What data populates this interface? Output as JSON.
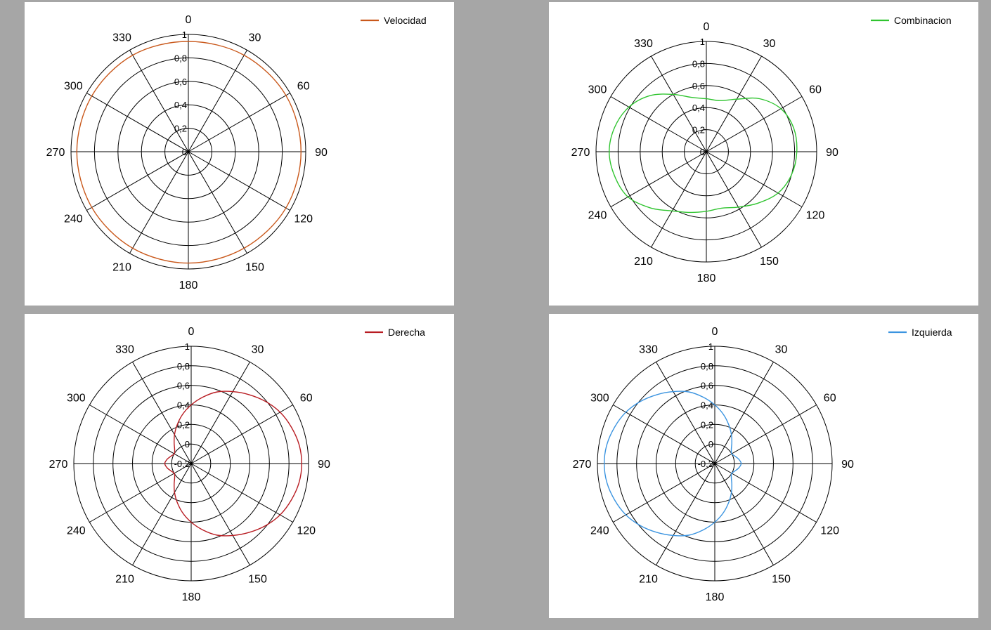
{
  "chart_data": [
    {
      "type": "polar-line",
      "series": [
        {
          "name": "Velocidad",
          "color": "#c9581b",
          "theta": [
            0,
            30,
            60,
            90,
            120,
            150,
            180,
            210,
            240,
            270,
            300,
            330,
            360
          ],
          "r": [
            0.94,
            0.95,
            0.96,
            0.96,
            0.96,
            0.95,
            0.95,
            0.95,
            0.95,
            0.95,
            0.95,
            0.95,
            0.94
          ]
        }
      ],
      "radial_ticks": [
        "0",
        "0,2",
        "0,4",
        "0,6",
        "0,8",
        "1"
      ],
      "angle_ticks": [
        "0",
        "30",
        "60",
        "90",
        "120",
        "150",
        "180",
        "210",
        "240",
        "270",
        "300",
        "330"
      ],
      "rmax": 1,
      "legend_position": "top-right"
    },
    {
      "type": "polar-line",
      "series": [
        {
          "name": "Combinacion",
          "color": "#2fc42f",
          "theta": [
            0,
            15,
            30,
            45,
            60,
            75,
            90,
            105,
            120,
            135,
            150,
            165,
            180,
            195,
            210,
            225,
            240,
            255,
            270,
            285,
            300,
            315,
            330,
            345,
            360
          ],
          "r": [
            0.48,
            0.48,
            0.55,
            0.68,
            0.78,
            0.82,
            0.82,
            0.8,
            0.75,
            0.66,
            0.58,
            0.53,
            0.54,
            0.57,
            0.62,
            0.72,
            0.82,
            0.86,
            0.88,
            0.86,
            0.81,
            0.72,
            0.6,
            0.51,
            0.48
          ]
        }
      ],
      "radial_ticks": [
        "0",
        "0,2",
        "0,4",
        "0,6",
        "0,8",
        "1"
      ],
      "angle_ticks": [
        "0",
        "30",
        "60",
        "90",
        "120",
        "150",
        "180",
        "210",
        "240",
        "270",
        "300",
        "330"
      ],
      "rmax": 1,
      "legend_position": "top-right"
    },
    {
      "type": "polar-line",
      "series": [
        {
          "name": "Derecha",
          "color": "#b81c22",
          "theta": [
            0,
            10,
            20,
            30,
            40,
            50,
            60,
            70,
            80,
            90,
            100,
            110,
            120,
            130,
            140,
            150,
            160,
            170,
            180,
            190,
            200,
            210,
            220,
            230,
            240,
            250,
            260,
            270,
            280,
            290,
            300,
            310,
            320,
            330,
            340,
            350,
            360
          ],
          "r": [
            0.4,
            0.49,
            0.58,
            0.65,
            0.72,
            0.79,
            0.85,
            0.89,
            0.92,
            0.93,
            0.92,
            0.89,
            0.85,
            0.79,
            0.72,
            0.65,
            0.58,
            0.49,
            0.4,
            0.31,
            0.22,
            0.14,
            0.07,
            0.02,
            0.0,
            0.02,
            0.05,
            0.07,
            0.05,
            0.02,
            0.0,
            0.02,
            0.07,
            0.14,
            0.22,
            0.31,
            0.4
          ]
        }
      ],
      "radial_ticks": [
        "-0,2",
        "0",
        "0,2",
        "0,4",
        "0,6",
        "0,8",
        "1"
      ],
      "angle_ticks": [
        "0",
        "30",
        "60",
        "90",
        "120",
        "150",
        "180",
        "210",
        "240",
        "270",
        "300",
        "330"
      ],
      "rmin": -0.2,
      "rmax": 1,
      "legend_position": "top-right"
    },
    {
      "type": "polar-line",
      "series": [
        {
          "name": "Izquierda",
          "color": "#3b94e0",
          "theta": [
            0,
            10,
            20,
            30,
            40,
            50,
            60,
            70,
            80,
            90,
            100,
            110,
            120,
            130,
            140,
            150,
            160,
            170,
            180,
            190,
            200,
            210,
            220,
            230,
            240,
            250,
            260,
            270,
            280,
            290,
            300,
            310,
            320,
            330,
            340,
            350,
            360
          ],
          "r": [
            0.4,
            0.31,
            0.22,
            0.14,
            0.07,
            0.02,
            0.0,
            0.02,
            0.05,
            0.07,
            0.05,
            0.02,
            0.0,
            0.02,
            0.07,
            0.14,
            0.22,
            0.31,
            0.4,
            0.49,
            0.58,
            0.65,
            0.72,
            0.79,
            0.85,
            0.89,
            0.92,
            0.93,
            0.92,
            0.89,
            0.85,
            0.79,
            0.72,
            0.65,
            0.58,
            0.49,
            0.4
          ]
        }
      ],
      "radial_ticks": [
        "-0,2",
        "0",
        "0,2",
        "0,4",
        "0,6",
        "0,8",
        "1"
      ],
      "angle_ticks": [
        "0",
        "30",
        "60",
        "90",
        "120",
        "150",
        "180",
        "210",
        "240",
        "270",
        "300",
        "330"
      ],
      "rmin": -0.2,
      "rmax": 1,
      "legend_position": "top-right"
    }
  ]
}
